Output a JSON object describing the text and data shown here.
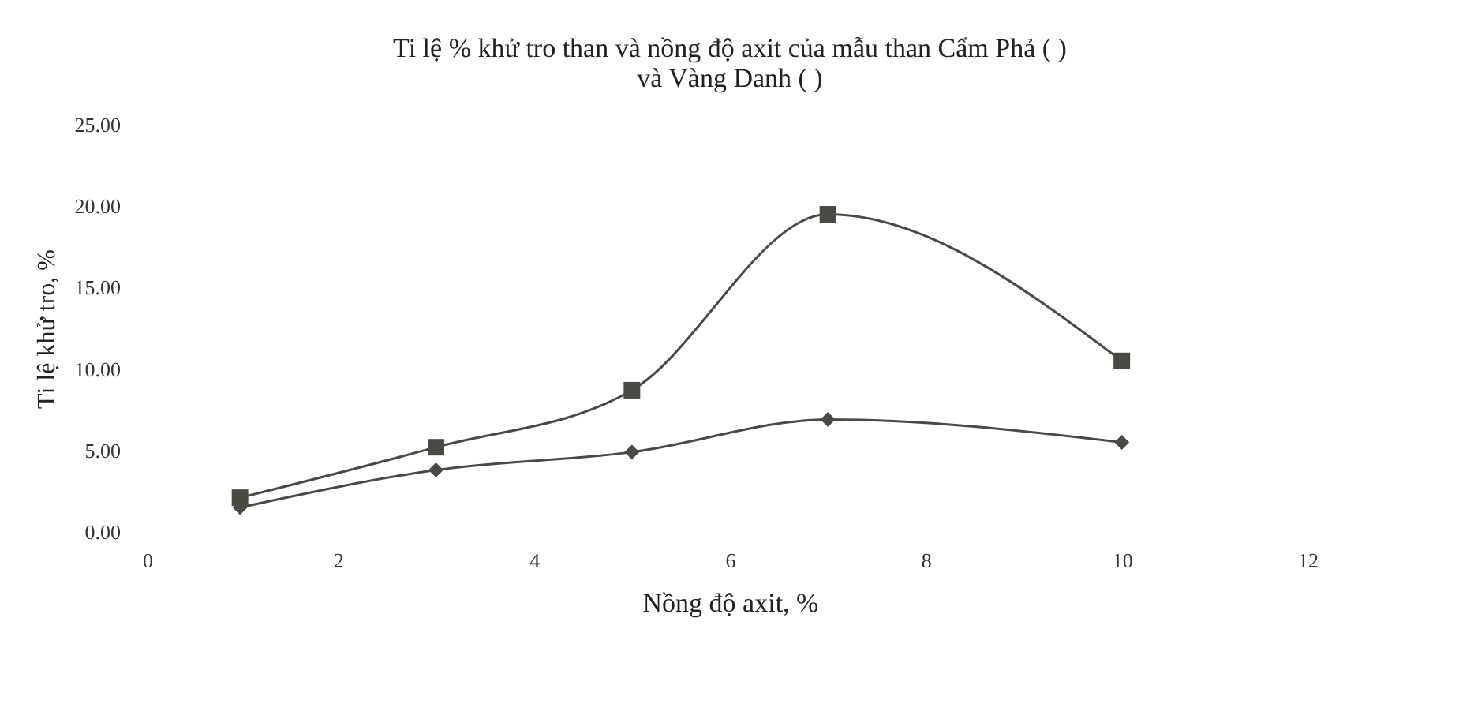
{
  "chart_data": {
    "type": "line",
    "title": "Ti lệ % khử tro than và nồng độ axit của mẫu than Cẩm Phả ( )\nvà Vàng Danh ( )",
    "xlabel": "Nồng độ axit, %",
    "ylabel": "Ti lệ khử tro, %",
    "x": [
      1,
      3,
      5,
      7,
      10
    ],
    "series": [
      {
        "color": "#4a4a44",
        "marker": "square",
        "values": [
          2.1,
          5.2,
          8.7,
          19.5,
          10.5
        ]
      },
      {
        "color": "#4a4a44",
        "marker": "diamond",
        "values": [
          1.5,
          3.8,
          4.9,
          6.9,
          5.5
        ]
      }
    ],
    "xlim": [
      0,
      12
    ],
    "xticks": [
      0,
      2,
      4,
      6,
      8,
      10,
      12
    ],
    "ylim": [
      0,
      25
    ],
    "yticks": [
      {
        "value": 0,
        "label": "0.00"
      },
      {
        "value": 5,
        "label": "5.00"
      },
      {
        "value": 10,
        "label": "10.00"
      },
      {
        "value": 15,
        "label": "15.00"
      },
      {
        "value": 20,
        "label": "20.00"
      },
      {
        "value": 25,
        "label": "25.00"
      }
    ],
    "grid": false,
    "line_style": "solid"
  }
}
